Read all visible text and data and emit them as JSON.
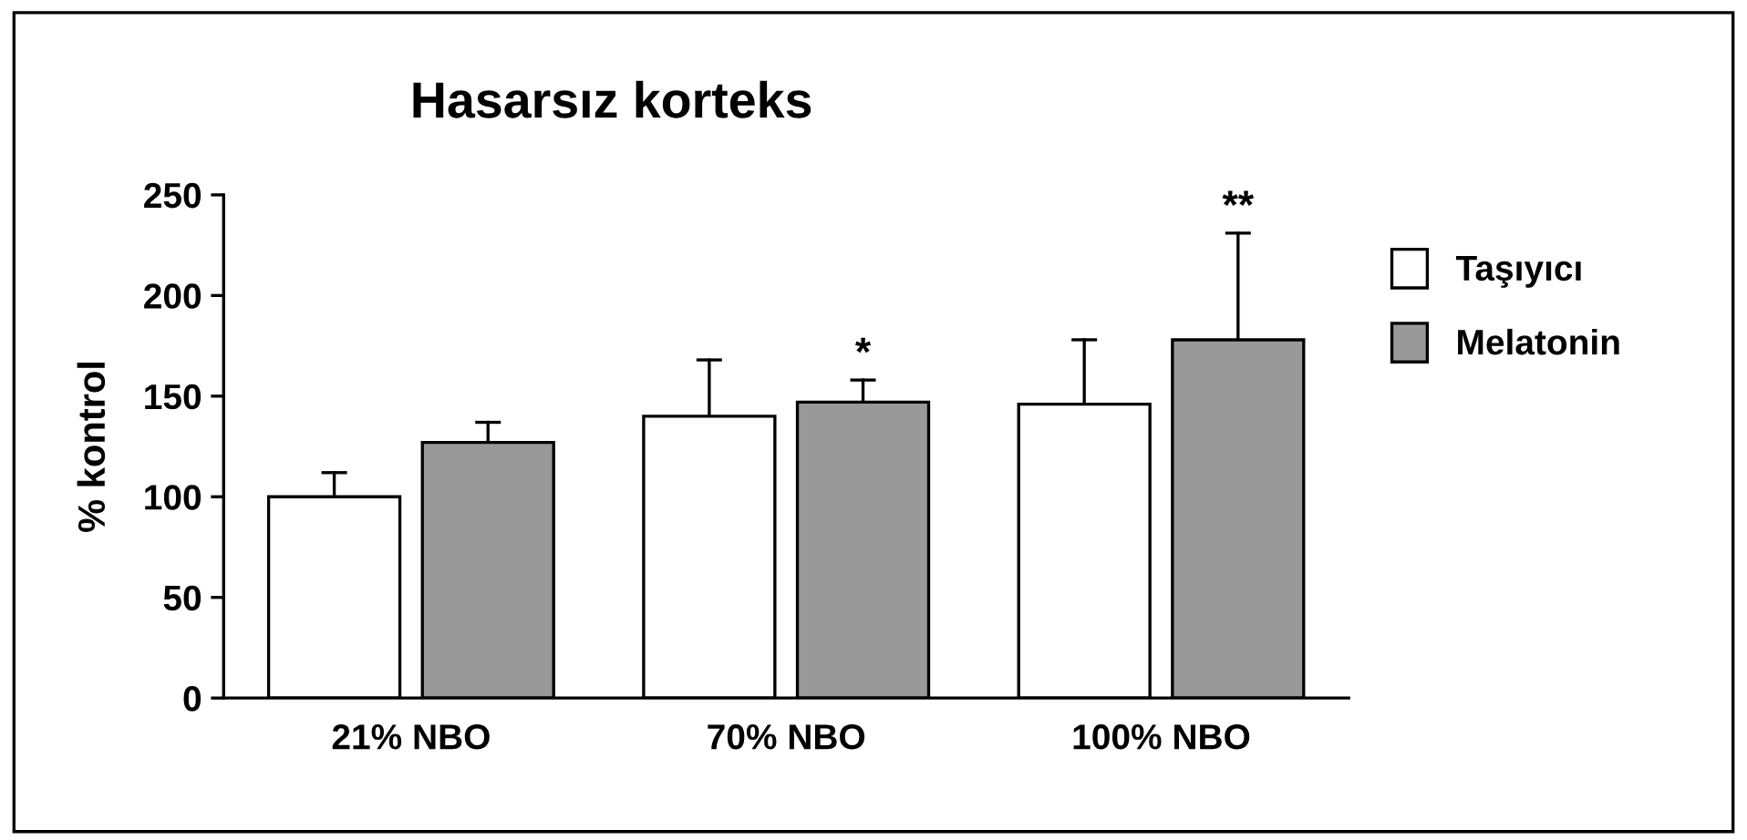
{
  "chart_data": {
    "type": "bar",
    "title": "Hasarsız korteks",
    "ylabel": "% kontrol",
    "categories": [
      "21% NBO",
      "70% NBO",
      "100% NBO"
    ],
    "series": [
      {
        "name": "Taşıyıcı",
        "color": "#ffffff",
        "values": [
          100,
          140,
          146
        ],
        "errors": [
          [
            100,
            112
          ],
          [
            140,
            168
          ],
          [
            146,
            178
          ]
        ]
      },
      {
        "name": "Melatonin",
        "color": "#999999",
        "values": [
          127,
          147,
          178
        ],
        "errors": [
          [
            127,
            137
          ],
          [
            147,
            158
          ],
          [
            178,
            231
          ]
        ]
      }
    ],
    "ylim": [
      0,
      250
    ],
    "yticks": [
      0,
      50,
      100,
      150,
      200,
      250
    ],
    "grid": false,
    "legend": "right",
    "annotations": [
      "*",
      "**"
    ]
  }
}
